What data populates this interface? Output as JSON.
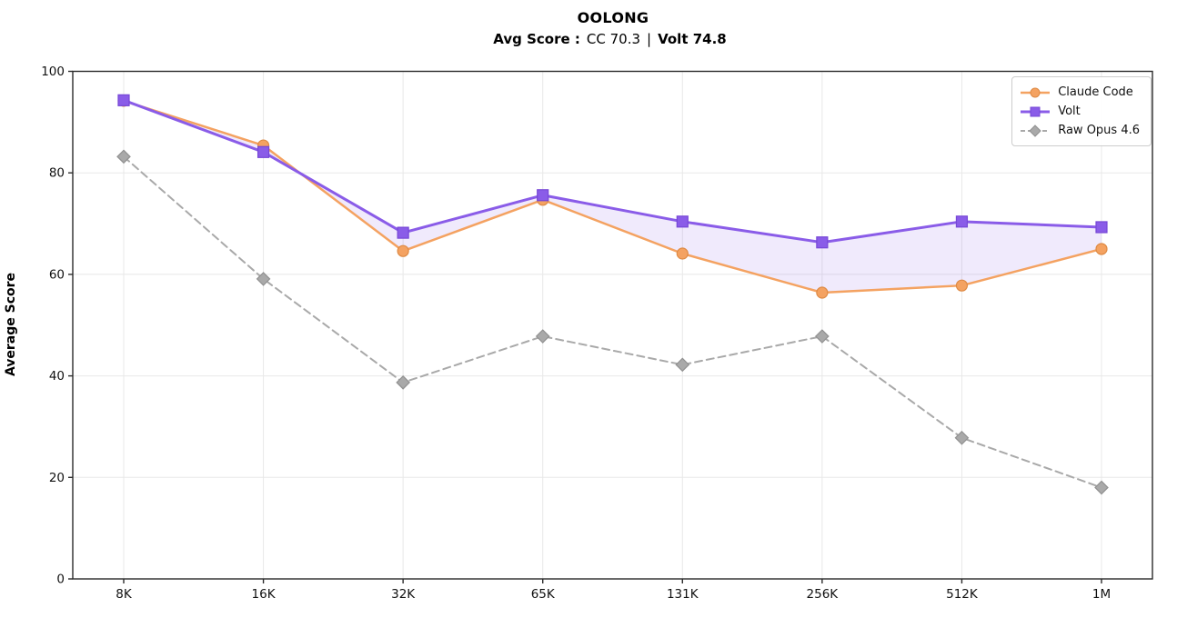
{
  "title": "OOLONG",
  "subtitle": {
    "prefix": "Avg Score :",
    "cc_score": "CC 70.3",
    "separator": "|",
    "volt_score": "Volt 74.8"
  },
  "colors": {
    "claude_code": "#F4A261",
    "claude_code_edge": "#DE8A44",
    "volt": "#8A5CE8",
    "volt_edge": "#7647D6",
    "raw_opus": "#A9A9A9",
    "raw_opus_edge": "#919191",
    "grid": "#E8E8E8",
    "spine": "#2B2B2B",
    "fill_between": "#8A5CE8",
    "legend_border": "#CCCCCC"
  },
  "chart_data": {
    "type": "line",
    "title": "OOLONG",
    "subtitle": "Avg Score :  CC 70.3  |  Volt 74.8",
    "xlabel": "",
    "ylabel": "Average Score",
    "ylim": [
      0,
      100
    ],
    "yticks": [
      0,
      20,
      40,
      60,
      80,
      100
    ],
    "grid": true,
    "legend_position": "top-right",
    "categories": [
      "8K",
      "16K",
      "32K",
      "65K",
      "131K",
      "256K",
      "512K",
      "1M"
    ],
    "series": [
      {
        "name": "Claude Code",
        "avg_shown": 70.3,
        "color": "#F4A261",
        "edge": "#DE8A44",
        "marker": "circle",
        "style": "solid",
        "line_width": 2.5,
        "values": [
          94.2,
          85.4,
          64.6,
          74.7,
          64.1,
          56.4,
          57.8,
          65.0
        ]
      },
      {
        "name": "Volt",
        "avg_shown": 74.8,
        "color": "#8A5CE8",
        "edge": "#7647D6",
        "marker": "square",
        "style": "solid",
        "line_width": 3,
        "values": [
          94.3,
          84.1,
          68.2,
          75.6,
          70.4,
          66.3,
          70.4,
          69.3
        ]
      },
      {
        "name": "Raw Opus 4.6",
        "color": "#A9A9A9",
        "edge": "#919191",
        "marker": "diamond",
        "style": "dashed",
        "line_width": 2,
        "values": [
          83.2,
          59.1,
          38.7,
          47.8,
          42.2,
          47.8,
          27.8,
          18.0
        ]
      }
    ],
    "fill_between": {
      "upper": "Volt",
      "lower": "Claude Code",
      "color": "#8A5CE8",
      "opacity": 0.13
    }
  }
}
